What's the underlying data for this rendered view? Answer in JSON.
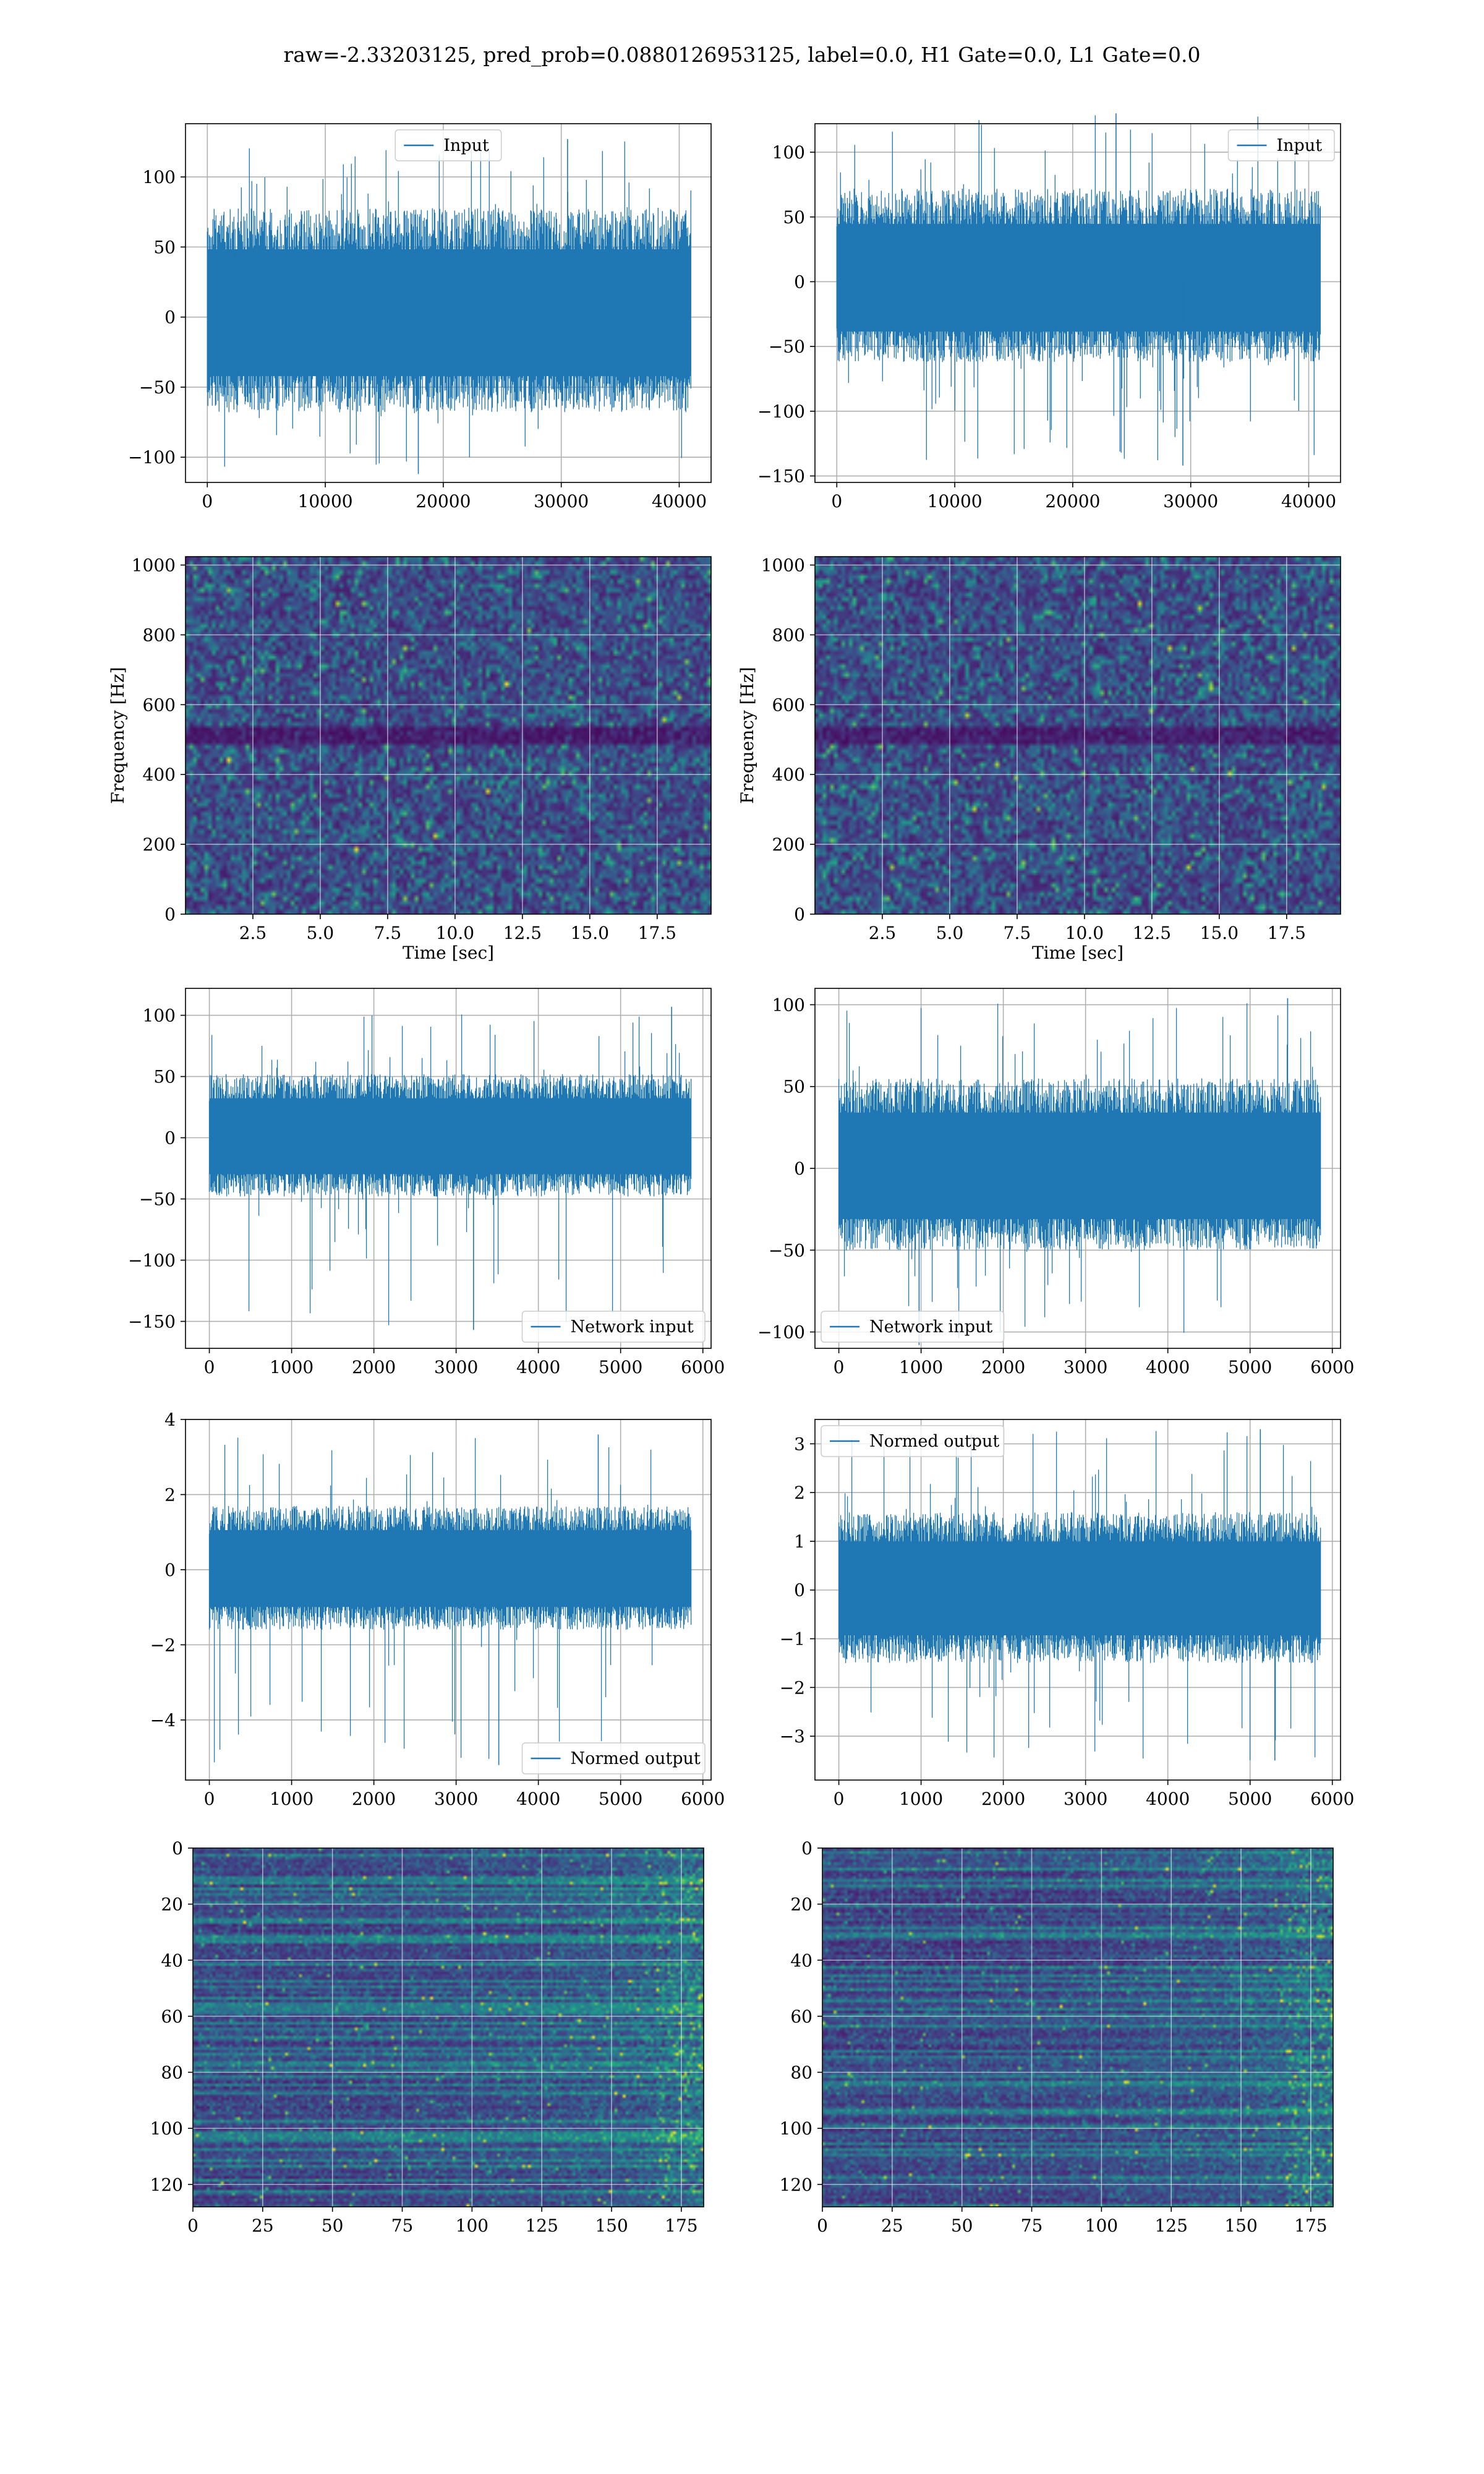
{
  "title": "raw=-2.33203125, pred_prob=0.0880126953125, label=0.0, H1 Gate=0.0, L1 Gate=0.0",
  "colors": {
    "line": "#1f77b4",
    "grid": "#b0b0b0",
    "colormap": "viridis"
  },
  "chart_data": [
    {
      "id": "h1-input",
      "type": "line",
      "xlim": [
        -1850,
        42700
      ],
      "ylim": [
        -118,
        138
      ],
      "xticks": [
        0,
        10000,
        20000,
        30000,
        40000
      ],
      "yticks": [
        -100,
        -50,
        0,
        50,
        100
      ],
      "xticklabels": [
        "0",
        "10000",
        "20000",
        "30000",
        "40000"
      ],
      "yticklabels": [
        "−100",
        "−50",
        "0",
        "50",
        "100"
      ],
      "legend": {
        "label": "Input",
        "loc": "upper center"
      },
      "series": {
        "x_range": [
          0,
          40960
        ],
        "lower_env": -68,
        "upper_env": 78,
        "spread": 0.85,
        "min": -112,
        "max": 127,
        "seed": 11
      }
    },
    {
      "id": "l1-input",
      "type": "line",
      "xlim": [
        -1850,
        42700
      ],
      "ylim": [
        -155,
        122
      ],
      "xticks": [
        0,
        10000,
        20000,
        30000,
        40000
      ],
      "yticks": [
        -150,
        -100,
        -50,
        0,
        50,
        100
      ],
      "xticklabels": [
        "0",
        "10000",
        "20000",
        "30000",
        "40000"
      ],
      "yticklabels": [
        "−150",
        "−100",
        "−50",
        "0",
        "50",
        "100"
      ],
      "legend": {
        "label": "Input",
        "loc": "upper right"
      },
      "series": {
        "x_range": [
          0,
          40960
        ],
        "lower_env": -62,
        "upper_env": 72,
        "spread": 0.9,
        "min": -142,
        "max": 130,
        "seed": 23
      }
    },
    {
      "id": "h1-spectrogram",
      "type": "heatmap",
      "xlim": [
        0,
        19.5
      ],
      "ylim": [
        0,
        1024
      ],
      "xlabel": "Time [sec]",
      "ylabel": "Frequency [Hz]",
      "xticks": [
        2.5,
        5.0,
        7.5,
        10.0,
        12.5,
        15.0,
        17.5
      ],
      "yticks": [
        0,
        200,
        400,
        600,
        800,
        1000
      ],
      "xticklabels": [
        "2.5",
        "5.0",
        "7.5",
        "10.0",
        "12.5",
        "15.0",
        "17.5"
      ],
      "yticklabels": [
        "0",
        "200",
        "400",
        "600",
        "800",
        "1000"
      ],
      "grid": true,
      "seed": 37
    },
    {
      "id": "l1-spectrogram",
      "type": "heatmap",
      "xlim": [
        0,
        19.5
      ],
      "ylim": [
        0,
        1024
      ],
      "xlabel": "Time [sec]",
      "ylabel": "Frequency [Hz]",
      "xticks": [
        2.5,
        5.0,
        7.5,
        10.0,
        12.5,
        15.0,
        17.5
      ],
      "yticks": [
        0,
        200,
        400,
        600,
        800,
        1000
      ],
      "xticklabels": [
        "2.5",
        "5.0",
        "7.5",
        "10.0",
        "12.5",
        "15.0",
        "17.5"
      ],
      "yticklabels": [
        "0",
        "200",
        "400",
        "600",
        "800",
        "1000"
      ],
      "grid": true,
      "seed": 41
    },
    {
      "id": "h1-network-input",
      "type": "line",
      "xlim": [
        -290,
        6100
      ],
      "ylim": [
        -172,
        122
      ],
      "xticks": [
        0,
        1000,
        2000,
        3000,
        4000,
        5000,
        6000
      ],
      "yticks": [
        -150,
        -100,
        -50,
        0,
        50,
        100
      ],
      "xticklabels": [
        "0",
        "1000",
        "2000",
        "3000",
        "4000",
        "5000",
        "6000"
      ],
      "yticklabels": [
        "−150",
        "−100",
        "−50",
        "0",
        "50",
        "100"
      ],
      "legend": {
        "label": "Network input",
        "loc": "lower right"
      },
      "series": {
        "x_range": [
          0,
          5860
        ],
        "lower_env": -48,
        "upper_env": 52,
        "spread": 1.0,
        "min": -157,
        "max": 107,
        "seed": 53
      }
    },
    {
      "id": "l1-network-input",
      "type": "line",
      "xlim": [
        -290,
        6100
      ],
      "ylim": [
        -110,
        110
      ],
      "xticks": [
        0,
        1000,
        2000,
        3000,
        4000,
        5000,
        6000
      ],
      "yticks": [
        -100,
        -50,
        0,
        50,
        100
      ],
      "xticklabels": [
        "0",
        "1000",
        "2000",
        "3000",
        "4000",
        "5000",
        "6000"
      ],
      "yticklabels": [
        "−100",
        "−50",
        "0",
        "50",
        "100"
      ],
      "legend": {
        "label": "Network input",
        "loc": "lower left"
      },
      "series": {
        "x_range": [
          0,
          5860
        ],
        "lower_env": -50,
        "upper_env": 55,
        "spread": 1.0,
        "min": -108,
        "max": 104,
        "seed": 67
      }
    },
    {
      "id": "h1-normed-output",
      "type": "line",
      "xlim": [
        -290,
        6100
      ],
      "ylim": [
        -5.6,
        4.0
      ],
      "xticks": [
        0,
        1000,
        2000,
        3000,
        4000,
        5000,
        6000
      ],
      "yticks": [
        -4,
        -2,
        0,
        2,
        4
      ],
      "xticklabels": [
        "0",
        "1000",
        "2000",
        "3000",
        "4000",
        "5000",
        "6000"
      ],
      "yticklabels": [
        "−4",
        "−2",
        "0",
        "2",
        "4"
      ],
      "legend": {
        "label": "Normed output",
        "loc": "lower right"
      },
      "series": {
        "x_range": [
          0,
          5860
        ],
        "lower_env": -1.6,
        "upper_env": 1.7,
        "spread": 1.0,
        "min": -5.2,
        "max": 3.6,
        "seed": 79
      }
    },
    {
      "id": "l1-normed-output",
      "type": "line",
      "xlim": [
        -290,
        6100
      ],
      "ylim": [
        -3.9,
        3.5
      ],
      "xticks": [
        0,
        1000,
        2000,
        3000,
        4000,
        5000,
        6000
      ],
      "yticks": [
        -3,
        -2,
        -1,
        0,
        1,
        2,
        3
      ],
      "xticklabels": [
        "0",
        "1000",
        "2000",
        "3000",
        "4000",
        "5000",
        "6000"
      ],
      "yticklabels": [
        "−3",
        "−2",
        "−1",
        "0",
        "1",
        "2",
        "3"
      ],
      "legend": {
        "label": "Normed output",
        "loc": "upper left"
      },
      "series": {
        "x_range": [
          0,
          5860
        ],
        "lower_env": -1.5,
        "upper_env": 1.6,
        "spread": 1.0,
        "min": -3.5,
        "max": 3.3,
        "seed": 83
      }
    },
    {
      "id": "h1-feature-map",
      "type": "heatmap",
      "xlim": [
        0,
        183
      ],
      "ylim": [
        128,
        0
      ],
      "xticks": [
        0,
        25,
        50,
        75,
        100,
        125,
        150,
        175
      ],
      "yticks": [
        0,
        20,
        40,
        60,
        80,
        100,
        120
      ],
      "xticklabels": [
        "0",
        "25",
        "50",
        "75",
        "100",
        "125",
        "150",
        "175"
      ],
      "yticklabels": [
        "0",
        "20",
        "40",
        "60",
        "80",
        "100",
        "120"
      ],
      "grid": true,
      "seed": 97
    },
    {
      "id": "l1-feature-map",
      "type": "heatmap",
      "xlim": [
        0,
        183
      ],
      "ylim": [
        128,
        0
      ],
      "xticks": [
        0,
        25,
        50,
        75,
        100,
        125,
        150,
        175
      ],
      "yticks": [
        0,
        20,
        40,
        60,
        80,
        100,
        120
      ],
      "xticklabels": [
        "0",
        "25",
        "50",
        "75",
        "100",
        "125",
        "150",
        "175"
      ],
      "yticklabels": [
        "0",
        "20",
        "40",
        "60",
        "80",
        "100",
        "120"
      ],
      "grid": true,
      "seed": 101
    }
  ]
}
